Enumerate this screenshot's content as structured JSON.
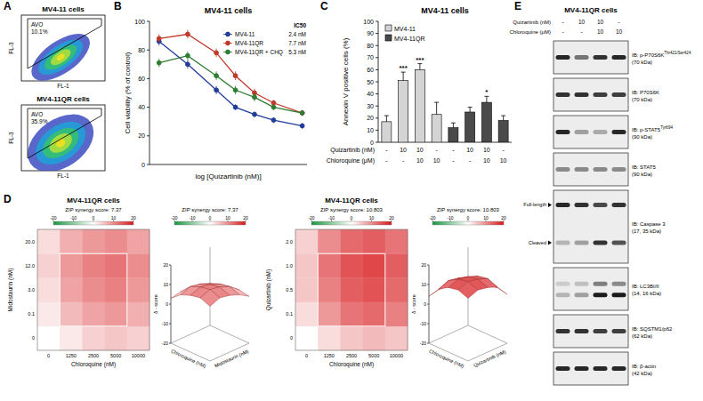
{
  "panel_letters": [
    "A",
    "B",
    "C",
    "D",
    "E"
  ],
  "flow": {
    "x_label": "FL-1",
    "y_label": "FL-3",
    "plots": [
      {
        "title": "MV4-11 cells",
        "gate_label": "AVO",
        "gate_value": "10.1%"
      },
      {
        "title": "MV4-11QR cells",
        "gate_label": "AVO",
        "gate_value": "35.9%"
      }
    ]
  },
  "chart_data": [
    {
      "type": "line",
      "title": "MV4-11 cells",
      "x_label": "log [Quizartinib (nM)]",
      "y_label": "Cell viability (% of control)",
      "xlim": [
        -0.3,
        1.35
      ],
      "ylim": [
        0,
        100
      ],
      "yticks": [
        0,
        20,
        40,
        60,
        80,
        100
      ],
      "tick_labels": "y",
      "legend": "upper right",
      "legend_title": "IC50",
      "x": [
        -0.2,
        0.1,
        0.4,
        0.6,
        0.8,
        1.0,
        1.3
      ],
      "series": [
        {
          "name": "MV4-11",
          "ic50": "2.4 nM",
          "color": "#1f3d99",
          "marker": "circle",
          "values": [
            86,
            70,
            52,
            40,
            35,
            31,
            27
          ],
          "errors": [
            3,
            3,
            3,
            2,
            2,
            2,
            2
          ]
        },
        {
          "name": "MV4-11QR",
          "ic50": "7.7 nM",
          "color": "#c0392b",
          "marker": "circle",
          "values": [
            88,
            91,
            78,
            62,
            50,
            43,
            36
          ],
          "errors": [
            3,
            3,
            3,
            3,
            3,
            2,
            2
          ]
        },
        {
          "name": "MV4-11QR + CHQ",
          "ic50": "5.3 nM",
          "color": "#2e7d32",
          "marker": "circle",
          "values": [
            71,
            76,
            62,
            52,
            47,
            40,
            36
          ],
          "errors": [
            3,
            3,
            3,
            3,
            3,
            2,
            2
          ]
        }
      ]
    },
    {
      "type": "bar",
      "title": "MV4-11 cells",
      "y_label": "Annexin V positive cells (%)",
      "ylim": [
        0,
        100
      ],
      "yticks": [
        0,
        10,
        20,
        30,
        40,
        50,
        60,
        70,
        80,
        90,
        100
      ],
      "legend": "upper left",
      "categories": [
        null,
        null,
        null,
        null,
        null,
        null,
        null,
        null
      ],
      "series": [
        {
          "name": "MV4-11",
          "color": "#d4d4d4",
          "values": [
            17,
            51,
            60,
            23,
            null,
            null,
            null,
            null
          ],
          "errors": [
            5,
            7,
            5,
            10,
            null,
            null,
            null,
            null
          ],
          "significance": [
            null,
            "***",
            "***",
            null,
            null,
            null,
            null,
            null
          ]
        },
        {
          "name": "MV4-11QR",
          "color": "#4a4a4a",
          "values": [
            null,
            null,
            null,
            null,
            12,
            25,
            33,
            18
          ],
          "errors": [
            null,
            null,
            null,
            null,
            4,
            4,
            5,
            4
          ],
          "significance": [
            null,
            null,
            null,
            null,
            null,
            null,
            "*",
            null
          ]
        }
      ],
      "treatments": [
        {
          "label": "Quizartinib (nM)",
          "values": [
            "-",
            "10",
            "10",
            "-",
            "-",
            "10",
            "10",
            "-"
          ]
        },
        {
          "label": "Chloroquine (μM)",
          "values": [
            "-",
            "-",
            "10",
            "10",
            "-",
            "-",
            "10",
            "10"
          ]
        }
      ]
    }
  ],
  "synergy": {
    "colorbar": {
      "lim": [
        -20,
        20
      ],
      "ticks": [
        -20,
        -10,
        0,
        10,
        20
      ],
      "colors": [
        "#1a9641",
        "#ffffff",
        "#d7191c"
      ]
    },
    "z_label": "δ - score",
    "zlim": [
      -20,
      20
    ],
    "zticks": [
      -20,
      -10,
      0,
      10,
      20
    ],
    "plots": [
      {
        "title": "MV4-11QR cells",
        "score_label": "ZIP synergy score: 7.37",
        "x_label": "Chloroquine (nM)",
        "y_label": "Midostaurin (nM)",
        "x_categories": [
          "0",
          "1250",
          "2500",
          "5000",
          "10000"
        ],
        "y_categories": [
          "0",
          "0.1",
          "3.0",
          "12.0",
          "20.0"
        ],
        "matrix": [
          [
            0,
            2,
            4,
            5,
            4
          ],
          [
            2,
            6,
            8,
            9,
            7
          ],
          [
            3,
            8,
            10,
            11,
            9
          ],
          [
            4,
            9,
            11,
            12,
            10
          ],
          [
            3,
            7,
            9,
            10,
            8
          ]
        ]
      },
      {
        "title": "MV4-11QR cells",
        "score_label": "ZIP synergy score: 10.803",
        "x_label": "Chloroquine (nM)",
        "y_label": "Quizartinib (nM)",
        "x_categories": [
          "0",
          "1250",
          "2500",
          "5000",
          "10000"
        ],
        "y_categories": [
          "0",
          "0.1",
          "0.5",
          "1.0",
          "2.0"
        ],
        "matrix": [
          [
            0,
            3,
            5,
            6,
            5
          ],
          [
            3,
            9,
            12,
            13,
            11
          ],
          [
            5,
            11,
            14,
            15,
            13
          ],
          [
            5,
            12,
            15,
            16,
            14
          ],
          [
            4,
            10,
            13,
            14,
            12
          ]
        ]
      }
    ]
  },
  "blot": {
    "title": "MV4-11QR cells",
    "conditions": [
      {
        "label": "Quizartinib (nM)",
        "values": [
          "-",
          "10",
          "10",
          "-"
        ]
      },
      {
        "label": "Chloroquine (μM)",
        "values": [
          "-",
          "-",
          "10",
          "10"
        ]
      }
    ],
    "rows": [
      {
        "label": "IB: p-P70S6K",
        "superscript": "Thr421/Ser424",
        "kda": "(70 kDa)",
        "bands": [
          {
            "intensity": [
              0.9,
              0.55,
              0.85,
              0.9
            ]
          }
        ]
      },
      {
        "label": "IB: P70S6K",
        "kda": "(70 kDa)",
        "bands": [
          {
            "intensity": [
              0.85,
              0.85,
              0.8,
              0.8
            ]
          }
        ]
      },
      {
        "label": "IB: p-STAT5",
        "superscript": "Tyr694",
        "kda": "(90 kDa)",
        "bands": [
          {
            "intensity": [
              0.9,
              0.35,
              0.3,
              0.9
            ]
          }
        ]
      },
      {
        "label": "IB: STAT5",
        "kda": "(90 kDa)",
        "bands": [
          {
            "intensity": [
              0.45,
              0.45,
              0.45,
              0.45
            ]
          }
        ]
      },
      {
        "label": "IB: Caspase 3",
        "kda": "(17, 35 kDa)",
        "bands": [
          {
            "name": "Full-length",
            "intensity": [
              0.9,
              0.85,
              0.75,
              0.85
            ]
          },
          {
            "name": "Cleaved",
            "intensity": [
              0.25,
              0.35,
              0.85,
              0.7
            ]
          }
        ]
      },
      {
        "label": "IB: LC3BI/II",
        "kda": "(14, 16 kDa)",
        "bands": [
          {
            "intensity": [
              0.15,
              0.2,
              0.5,
              0.45
            ]
          },
          {
            "intensity": [
              0.25,
              0.35,
              0.95,
              0.95
            ]
          }
        ]
      },
      {
        "label": "IB: SQSTM1/p62",
        "kda": "(62 kDa)",
        "bands": [
          {
            "intensity": [
              0.85,
              0.85,
              0.8,
              0.8
            ]
          }
        ]
      },
      {
        "label": "IB: β-actin",
        "kda": "(42 kDa)",
        "bands": [
          {
            "intensity": [
              0.9,
              0.9,
              0.9,
              0.9
            ]
          }
        ]
      }
    ]
  }
}
